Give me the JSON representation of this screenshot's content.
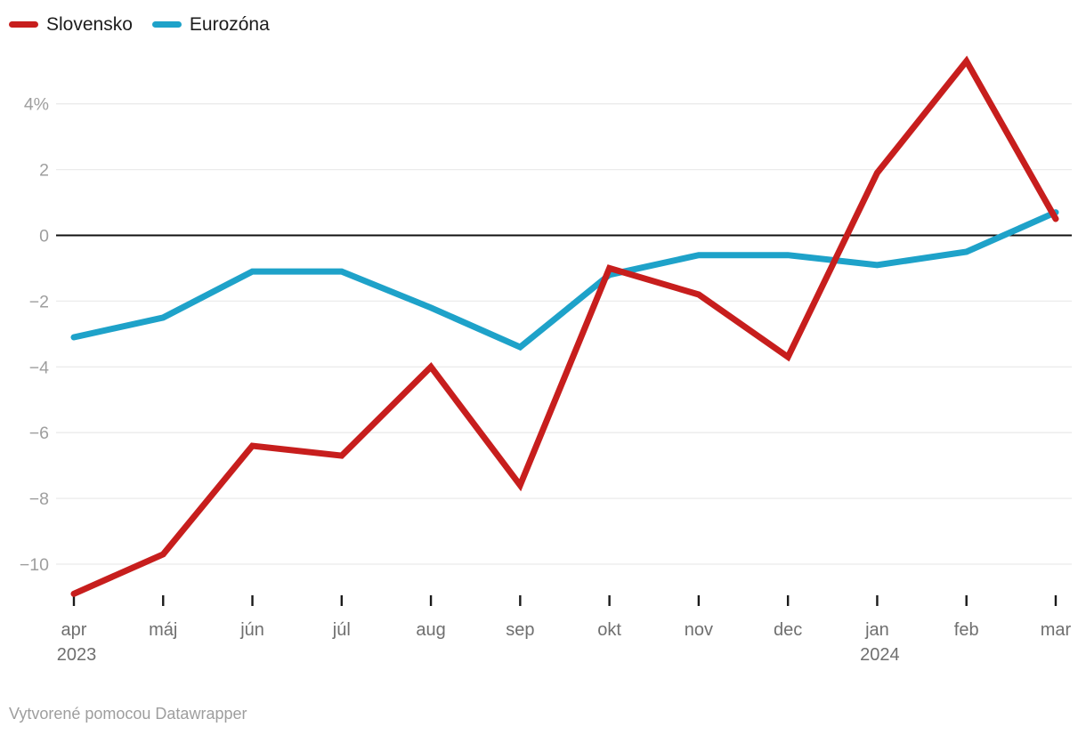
{
  "footer": {
    "text": "Vytvorené pomocou Datawrapper"
  },
  "colors": {
    "slovensko": "#c71e1d",
    "eurozona": "#1ea2c9",
    "gridline": "#ebebeb",
    "zero_line": "#111111",
    "y_label": "#9e9e9e",
    "x_label": "#6f6f6f",
    "tick": "#1a1a1a",
    "legend_text": "#1d1d1d",
    "footer_text": "#9e9e9e"
  },
  "chart_data": {
    "type": "line",
    "categories": [
      "apr",
      "máj",
      "jún",
      "júl",
      "aug",
      "sep",
      "okt",
      "nov",
      "dec",
      "jan",
      "feb",
      "mar"
    ],
    "year_markers": [
      {
        "index": 0,
        "label": "2023"
      },
      {
        "index": 9,
        "label": "2024"
      }
    ],
    "series": [
      {
        "name": "Slovensko",
        "color": "#c71e1d",
        "values": [
          -10.9,
          -9.7,
          -6.4,
          -6.7,
          -4.0,
          -7.6,
          -1.0,
          -1.8,
          -3.7,
          1.9,
          5.3,
          0.5
        ]
      },
      {
        "name": "Eurozóna",
        "color": "#1ea2c9",
        "values": [
          -3.1,
          -2.5,
          -1.1,
          -1.1,
          -2.2,
          -3.4,
          -1.2,
          -0.6,
          -0.6,
          -0.9,
          -0.5,
          0.7
        ]
      }
    ],
    "yticks": [
      4,
      2,
      0,
      -2,
      -4,
      -6,
      -8,
      -10
    ],
    "ytick_labels": [
      "4%",
      "2",
      "0",
      "−2",
      "−4",
      "−6",
      "−8",
      "−10"
    ],
    "ylim": [
      -11.6,
      5.6
    ],
    "grid": true,
    "zero_line": true,
    "legend_position": "top-left",
    "title": "",
    "xlabel": "",
    "ylabel": ""
  }
}
